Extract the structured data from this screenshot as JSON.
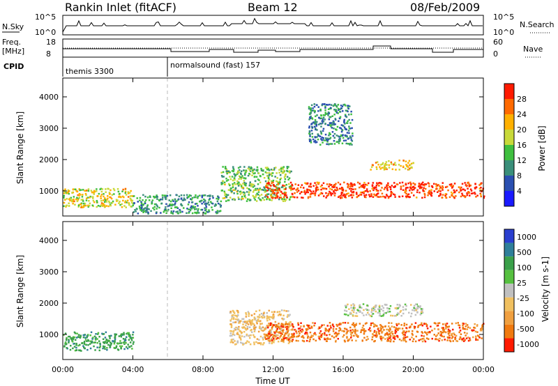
{
  "header": {
    "station": "Rankin Inlet (fitACF)",
    "beam": "Beam 12",
    "date": "08/Feb/2009"
  },
  "sky_panel": {
    "left_label": "N.Sky",
    "right_label": "N.Search",
    "left_ticks": [
      "10^5",
      "10^0"
    ],
    "right_ticks": [
      "10^5",
      "10^0"
    ]
  },
  "freq_panel": {
    "left_label_1": "Freq.",
    "left_label_2": "[MHz]",
    "right_label": "Nave",
    "left_ticks": [
      "18",
      "8"
    ],
    "right_ticks": [
      "60",
      "0"
    ]
  },
  "cpid_panel": {
    "label": "CPID",
    "programs": [
      {
        "name": "themis 3300",
        "start_hour": 0
      },
      {
        "name": "normalsound (fast) 157",
        "start_hour": 6
      }
    ]
  },
  "colors": {
    "power_scale": [
      "#1a1aff",
      "#2a4fb0",
      "#3a8f7a",
      "#3fbf3f",
      "#c8d93a",
      "#ffb000",
      "#ff6a00",
      "#ff1a00"
    ],
    "velocity_scale": [
      "#2a3fcf",
      "#2f7f9a",
      "#3aa04a",
      "#56c040",
      "#c0c0c0",
      "#f0c060",
      "#f0a040",
      "#f07a10",
      "#ff1a00"
    ],
    "data_white": "#ffffff"
  },
  "chart_data": [
    {
      "type": "heatmap",
      "panel": "power",
      "xlabel": "",
      "ylabel": "Slant Range [km]",
      "xlim_hours": [
        0,
        24
      ],
      "ylim": [
        200,
        4600
      ],
      "y_ticks": [
        "1000",
        "2000",
        "3000",
        "4000"
      ],
      "colorbar": {
        "label": "Power [dB]",
        "ticks": [
          "4",
          "8",
          "12",
          "16",
          "20",
          "24",
          "28"
        ],
        "range": [
          0,
          30
        ]
      },
      "features": [
        {
          "hours": [
            0.0,
            4.0
          ],
          "range_km": [
            500,
            1100
          ],
          "level_dB": 18
        },
        {
          "hours": [
            4.0,
            9.0
          ],
          "range_km": [
            300,
            900
          ],
          "level_dB": 10
        },
        {
          "hours": [
            9.0,
            13.0
          ],
          "range_km": [
            700,
            1800
          ],
          "level_dB": 14
        },
        {
          "hours": [
            11.5,
            24.0
          ],
          "range_km": [
            800,
            1300
          ],
          "level_dB": 27
        },
        {
          "hours": [
            17.5,
            20.0
          ],
          "range_km": [
            1700,
            2000
          ],
          "level_dB": 20
        },
        {
          "hours": [
            14.0,
            16.5
          ],
          "range_km": [
            2500,
            3800
          ],
          "level_dB": 9
        }
      ]
    },
    {
      "type": "heatmap",
      "panel": "velocity",
      "xlabel": "Time UT",
      "ylabel": "Slant Range [km]",
      "xlim_hours": [
        0,
        24
      ],
      "ylim": [
        200,
        4600
      ],
      "x_ticks": [
        "00:00",
        "04:00",
        "08:00",
        "12:00",
        "16:00",
        "20:00",
        "00:00"
      ],
      "y_ticks": [
        "1000",
        "2000",
        "3000",
        "4000"
      ],
      "colorbar": {
        "label": "Velocity [m s-1]",
        "ticks": [
          "1000",
          "500",
          "100",
          "25",
          "-25",
          "-100",
          "-500",
          "-1000"
        ],
        "range": [
          -1000,
          1000
        ]
      },
      "features": [
        {
          "hours": [
            0.0,
            4.0
          ],
          "range_km": [
            500,
            1100
          ],
          "velocity": 100
        },
        {
          "hours": [
            9.5,
            13.0
          ],
          "range_km": [
            700,
            1800
          ],
          "velocity": -100
        },
        {
          "hours": [
            11.5,
            24.0
          ],
          "range_km": [
            800,
            1400
          ],
          "velocity": -500
        },
        {
          "hours": [
            16.0,
            20.5
          ],
          "range_km": [
            1600,
            2000
          ],
          "velocity": 0
        }
      ]
    }
  ]
}
